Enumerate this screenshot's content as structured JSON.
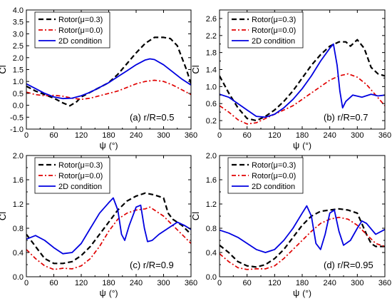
{
  "figure": {
    "background": "#ffffff"
  },
  "series_styles": [
    {
      "name": "Rotor(μ=0.3)",
      "color": "#000000",
      "dash": "7,4",
      "width": 2.2
    },
    {
      "name": "Rotor(μ=0.0)",
      "color": "#e00000",
      "dash": "6,3,2,3",
      "width": 1.7
    },
    {
      "name": "2D condition",
      "color": "#0000e0",
      "dash": "",
      "width": 1.8
    }
  ],
  "chart_data": [
    {
      "type": "line",
      "annotation": "(a) r/R=0.5",
      "xlabel": "ψ",
      "xlabel_unit": "(°)",
      "ylabel": "Cl",
      "xlim": [
        0,
        360
      ],
      "ylim": [
        -1.0,
        4.0
      ],
      "xticks": [
        0,
        60,
        120,
        180,
        240,
        300,
        360
      ],
      "yticks": [
        -1.0,
        -0.5,
        0.0,
        0.5,
        1.0,
        1.5,
        2.0,
        2.5,
        3.0,
        3.5,
        4.0
      ],
      "ytick_labels": [
        "-1.0",
        "-0.5",
        "0.0",
        "0.5",
        "1.0",
        "1.5",
        "2.0",
        "2.5",
        "3.0",
        "3.5",
        "4.0"
      ],
      "legend": "top-left",
      "series": [
        {
          "name": "Rotor(μ=0.3)",
          "x": [
            0,
            20,
            40,
            60,
            80,
            95,
            110,
            120,
            140,
            160,
            180,
            200,
            220,
            240,
            260,
            280,
            300,
            315,
            330,
            340,
            350,
            360
          ],
          "y": [
            0.8,
            0.6,
            0.45,
            0.3,
            0.1,
            -0.02,
            0.15,
            0.35,
            0.55,
            0.75,
            0.95,
            1.3,
            1.75,
            2.2,
            2.6,
            2.85,
            2.85,
            2.8,
            2.5,
            2.0,
            1.5,
            0.9
          ]
        },
        {
          "name": "Rotor(μ=0.0)",
          "x": [
            0,
            20,
            40,
            60,
            80,
            100,
            120,
            140,
            160,
            180,
            200,
            220,
            240,
            260,
            280,
            300,
            320,
            340,
            360
          ],
          "y": [
            0.55,
            0.45,
            0.4,
            0.42,
            0.38,
            0.3,
            0.25,
            0.3,
            0.4,
            0.5,
            0.6,
            0.75,
            0.9,
            1.0,
            1.05,
            1.0,
            0.85,
            0.65,
            0.45
          ]
        },
        {
          "name": "2D condition",
          "x": [
            0,
            20,
            40,
            60,
            80,
            100,
            120,
            140,
            160,
            180,
            200,
            220,
            240,
            260,
            270,
            280,
            300,
            320,
            340,
            360
          ],
          "y": [
            0.9,
            0.7,
            0.5,
            0.35,
            0.28,
            0.3,
            0.4,
            0.55,
            0.75,
            0.95,
            1.2,
            1.45,
            1.7,
            1.9,
            1.95,
            1.92,
            1.7,
            1.4,
            1.1,
            0.85
          ]
        }
      ]
    },
    {
      "type": "line",
      "annotation": "(b) r/R=0.7",
      "xlabel": "ψ",
      "xlabel_unit": "(°)",
      "ylabel": "Cl",
      "xlim": [
        0,
        360
      ],
      "ylim": [
        0.0,
        2.8
      ],
      "xticks": [
        0,
        60,
        120,
        180,
        240,
        300,
        360
      ],
      "yticks": [
        0.0,
        0.2,
        0.4,
        0.6,
        0.8,
        1.0,
        1.2,
        1.4,
        1.6,
        1.8,
        2.0,
        2.2,
        2.4,
        2.6,
        2.8
      ],
      "ytick_labels": [
        "",
        "0.2",
        "",
        "0.6",
        "",
        "1.0",
        "",
        "1.4",
        "",
        "1.8",
        "",
        "2.2",
        "",
        "2.6",
        ""
      ],
      "legend": "top-left",
      "series": [
        {
          "name": "Rotor(μ=0.3)",
          "x": [
            0,
            20,
            40,
            60,
            80,
            100,
            120,
            140,
            160,
            180,
            200,
            220,
            240,
            260,
            275,
            285,
            300,
            315,
            330,
            345,
            360
          ],
          "y": [
            1.25,
            0.85,
            0.5,
            0.25,
            0.2,
            0.3,
            0.45,
            0.65,
            0.9,
            1.2,
            1.5,
            1.75,
            1.95,
            2.05,
            2.05,
            1.95,
            2.1,
            1.9,
            1.45,
            1.3,
            1.25
          ]
        },
        {
          "name": "Rotor(μ=0.0)",
          "x": [
            0,
            20,
            40,
            60,
            80,
            100,
            120,
            140,
            160,
            180,
            200,
            220,
            240,
            260,
            280,
            300,
            320,
            340,
            360
          ],
          "y": [
            0.55,
            0.4,
            0.22,
            0.12,
            0.15,
            0.25,
            0.35,
            0.45,
            0.55,
            0.7,
            0.85,
            1.0,
            1.15,
            1.25,
            1.3,
            1.22,
            1.05,
            0.8,
            0.55
          ]
        },
        {
          "name": "2D condition",
          "x": [
            0,
            20,
            40,
            60,
            80,
            100,
            120,
            140,
            160,
            180,
            200,
            220,
            240,
            248,
            256,
            262,
            268,
            275,
            290,
            310,
            330,
            345,
            360
          ],
          "y": [
            0.82,
            0.75,
            0.6,
            0.45,
            0.3,
            0.28,
            0.35,
            0.5,
            0.7,
            0.95,
            1.25,
            1.6,
            1.9,
            2.0,
            1.5,
            0.9,
            0.5,
            0.65,
            0.8,
            0.75,
            0.82,
            0.78,
            0.8
          ]
        }
      ]
    },
    {
      "type": "line",
      "annotation": "(c) r/R=0.9",
      "xlabel": "ψ",
      "xlabel_unit": "(°)",
      "ylabel": "Cl",
      "xlim": [
        0,
        360
      ],
      "ylim": [
        0.0,
        2.0
      ],
      "xticks": [
        0,
        60,
        120,
        180,
        240,
        300,
        360
      ],
      "yticks": [
        0.0,
        0.2,
        0.4,
        0.6,
        0.8,
        1.0,
        1.2,
        1.4,
        1.6,
        1.8,
        2.0
      ],
      "ytick_labels": [
        "0.0",
        "",
        "0.4",
        "",
        "0.8",
        "",
        "1.2",
        "",
        "1.6",
        "",
        "2.0"
      ],
      "legend": "top-left",
      "series": [
        {
          "name": "Rotor(μ=0.3)",
          "x": [
            0,
            20,
            40,
            60,
            80,
            100,
            120,
            140,
            160,
            180,
            200,
            220,
            240,
            260,
            280,
            300,
            310,
            320,
            340,
            360
          ],
          "y": [
            0.7,
            0.5,
            0.3,
            0.22,
            0.22,
            0.25,
            0.35,
            0.5,
            0.7,
            0.9,
            1.1,
            1.25,
            1.33,
            1.38,
            1.35,
            1.3,
            1.05,
            0.95,
            0.85,
            0.7
          ]
        },
        {
          "name": "Rotor(μ=0.0)",
          "x": [
            0,
            20,
            40,
            60,
            80,
            100,
            120,
            140,
            160,
            180,
            200,
            220,
            240,
            260,
            270,
            280,
            300,
            320,
            340,
            360
          ],
          "y": [
            0.45,
            0.3,
            0.18,
            0.12,
            0.14,
            0.13,
            0.18,
            0.3,
            0.5,
            0.75,
            0.95,
            1.05,
            1.1,
            1.12,
            1.15,
            1.1,
            1.0,
            0.85,
            0.7,
            0.55
          ]
        },
        {
          "name": "2D condition",
          "x": [
            0,
            20,
            40,
            60,
            80,
            100,
            120,
            140,
            160,
            180,
            190,
            200,
            208,
            215,
            225,
            240,
            250,
            258,
            265,
            275,
            290,
            310,
            330,
            345,
            360
          ],
          "y": [
            0.62,
            0.68,
            0.6,
            0.48,
            0.38,
            0.4,
            0.55,
            0.8,
            1.05,
            1.22,
            1.3,
            1.1,
            0.7,
            0.6,
            0.85,
            1.15,
            1.18,
            0.8,
            0.58,
            0.6,
            0.7,
            0.8,
            0.9,
            0.85,
            0.78
          ]
        }
      ]
    },
    {
      "type": "line",
      "annotation": "(d) r/R=0.95",
      "xlabel": "ψ",
      "xlabel_unit": "(°)",
      "ylabel": "Cl",
      "xlim": [
        0,
        360
      ],
      "ylim": [
        0.0,
        2.0
      ],
      "xticks": [
        0,
        60,
        120,
        180,
        240,
        300,
        360
      ],
      "yticks": [
        0.0,
        0.2,
        0.4,
        0.6,
        0.8,
        1.0,
        1.2,
        1.4,
        1.6,
        1.8,
        2.0
      ],
      "ytick_labels": [
        "0.0",
        "",
        "0.4",
        "",
        "0.8",
        "",
        "1.2",
        "",
        "1.6",
        "",
        "2.0"
      ],
      "legend": "top-left",
      "series": [
        {
          "name": "Rotor(μ=0.3)",
          "x": [
            0,
            20,
            40,
            60,
            80,
            100,
            120,
            140,
            160,
            180,
            200,
            220,
            240,
            260,
            280,
            300,
            320,
            330,
            340,
            360
          ],
          "y": [
            0.52,
            0.4,
            0.25,
            0.18,
            0.16,
            0.2,
            0.3,
            0.45,
            0.65,
            0.85,
            1.0,
            1.08,
            1.1,
            1.12,
            1.1,
            1.05,
            0.7,
            0.55,
            0.5,
            0.5
          ]
        },
        {
          "name": "Rotor(μ=0.0)",
          "x": [
            0,
            20,
            40,
            60,
            80,
            100,
            120,
            140,
            160,
            180,
            200,
            220,
            240,
            260,
            280,
            300,
            320,
            340,
            360
          ],
          "y": [
            0.38,
            0.25,
            0.15,
            0.12,
            0.13,
            0.13,
            0.18,
            0.3,
            0.45,
            0.6,
            0.75,
            0.88,
            0.95,
            0.98,
            0.95,
            0.85,
            0.7,
            0.55,
            0.5
          ]
        },
        {
          "name": "2D condition",
          "x": [
            0,
            20,
            40,
            60,
            80,
            100,
            120,
            140,
            160,
            180,
            190,
            200,
            210,
            220,
            230,
            240,
            250,
            260,
            270,
            285,
            300,
            310,
            320,
            340,
            360
          ],
          "y": [
            0.77,
            0.72,
            0.65,
            0.55,
            0.45,
            0.4,
            0.45,
            0.6,
            0.8,
            1.05,
            1.17,
            1.0,
            0.55,
            0.45,
            0.7,
            1.05,
            1.1,
            0.75,
            0.52,
            0.6,
            0.8,
            0.92,
            0.88,
            0.7,
            0.78
          ]
        }
      ]
    }
  ]
}
